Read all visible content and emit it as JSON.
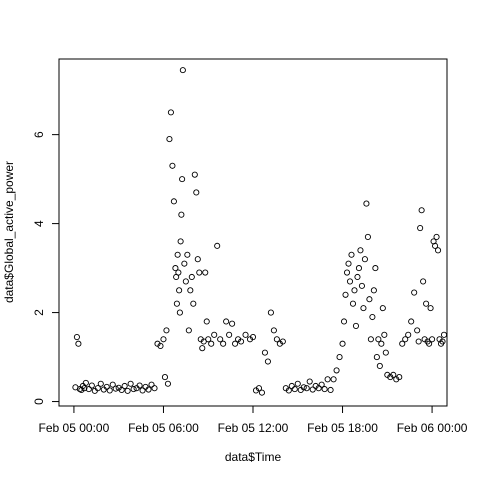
{
  "chart_data": {
    "type": "scatter",
    "title": "",
    "xlabel": "data$Time",
    "ylabel": "data$Global_active_power",
    "x_unit": "hours from Feb 05 00:00",
    "xlim": [
      -1,
      25
    ],
    "ylim": [
      -0.1,
      7.7
    ],
    "x_ticks": [
      {
        "value": 0,
        "label": "Feb 05 00:00"
      },
      {
        "value": 6,
        "label": "Feb 05 06:00"
      },
      {
        "value": 12,
        "label": "Feb 05 12:00"
      },
      {
        "value": 18,
        "label": "Feb 05 18:00"
      },
      {
        "value": 24,
        "label": "Feb 06 00:00"
      }
    ],
    "y_ticks": [
      {
        "value": 0,
        "label": "0"
      },
      {
        "value": 2,
        "label": "2"
      },
      {
        "value": 4,
        "label": "4"
      },
      {
        "value": 6,
        "label": "6"
      }
    ],
    "marker": "open-circle",
    "grid": false,
    "legend": "none",
    "series": [
      {
        "x": [
          0.1,
          0.2,
          0.3,
          0.4,
          0.5,
          0.6,
          0.7,
          0.8,
          1.0,
          1.2,
          1.4,
          1.6,
          1.8,
          2.0,
          2.2,
          2.4,
          2.6,
          2.8,
          3.0,
          3.2,
          3.4,
          3.6,
          3.8,
          4.0,
          4.2,
          4.4,
          4.6,
          4.8,
          5.0,
          5.2,
          5.4,
          5.6,
          5.8,
          6.0,
          6.1,
          6.2,
          6.3,
          6.4,
          6.5,
          6.6,
          6.7,
          6.8,
          6.85,
          6.9,
          6.95,
          7.0,
          7.05,
          7.1,
          7.15,
          7.2,
          7.25,
          7.3,
          7.4,
          7.5,
          7.6,
          7.7,
          7.8,
          7.9,
          8.0,
          8.1,
          8.2,
          8.3,
          8.4,
          8.5,
          8.6,
          8.7,
          8.8,
          8.9,
          9.0,
          9.2,
          9.4,
          9.6,
          9.8,
          10.0,
          10.2,
          10.4,
          10.6,
          10.8,
          11.0,
          11.2,
          11.5,
          11.8,
          12.0,
          12.2,
          12.4,
          12.6,
          12.8,
          13.0,
          13.2,
          13.4,
          13.6,
          13.8,
          14.0,
          14.2,
          14.4,
          14.6,
          14.8,
          15.0,
          15.2,
          15.4,
          15.6,
          15.8,
          16.0,
          16.2,
          16.4,
          16.6,
          16.8,
          17.0,
          17.2,
          17.4,
          17.6,
          17.8,
          18.0,
          18.1,
          18.2,
          18.3,
          18.4,
          18.5,
          18.6,
          18.7,
          18.8,
          18.9,
          19.0,
          19.1,
          19.2,
          19.3,
          19.4,
          19.5,
          19.6,
          19.7,
          19.8,
          19.9,
          20.0,
          20.1,
          20.2,
          20.3,
          20.4,
          20.5,
          20.6,
          20.7,
          20.8,
          20.9,
          21.0,
          21.2,
          21.4,
          21.6,
          21.8,
          22.0,
          22.2,
          22.4,
          22.6,
          22.8,
          23.0,
          23.1,
          23.2,
          23.3,
          23.4,
          23.5,
          23.6,
          23.7,
          23.8,
          23.9,
          24.0,
          24.1,
          24.2,
          24.3,
          24.4,
          24.5,
          24.6,
          24.7,
          24.8
        ],
        "y": [
          0.32,
          1.45,
          1.3,
          0.28,
          0.26,
          0.35,
          0.3,
          0.42,
          0.28,
          0.36,
          0.24,
          0.3,
          0.4,
          0.27,
          0.33,
          0.25,
          0.38,
          0.29,
          0.31,
          0.26,
          0.35,
          0.24,
          0.4,
          0.28,
          0.3,
          0.36,
          0.25,
          0.33,
          0.27,
          0.38,
          0.3,
          1.3,
          1.25,
          1.4,
          0.55,
          1.6,
          0.4,
          5.9,
          6.5,
          5.3,
          4.5,
          3.0,
          2.8,
          2.2,
          3.3,
          2.9,
          2.5,
          2.0,
          3.6,
          4.2,
          5.0,
          7.45,
          3.1,
          2.7,
          3.3,
          1.6,
          2.5,
          2.8,
          2.2,
          5.1,
          4.7,
          3.2,
          2.9,
          1.4,
          1.2,
          1.35,
          2.9,
          1.8,
          1.4,
          1.3,
          1.5,
          3.5,
          1.4,
          1.3,
          1.8,
          1.5,
          1.75,
          1.3,
          1.4,
          1.35,
          1.5,
          1.4,
          1.45,
          0.25,
          0.3,
          0.2,
          1.1,
          0.9,
          2.0,
          1.6,
          1.4,
          1.3,
          1.35,
          0.3,
          0.25,
          0.35,
          0.28,
          0.4,
          0.26,
          0.32,
          0.3,
          0.45,
          0.27,
          0.35,
          0.3,
          0.38,
          0.28,
          0.5,
          0.26,
          0.5,
          0.7,
          1.0,
          1.3,
          1.8,
          2.4,
          2.9,
          3.1,
          2.7,
          3.3,
          2.2,
          2.5,
          1.7,
          2.8,
          3.0,
          3.4,
          2.6,
          2.1,
          3.2,
          4.45,
          3.7,
          2.3,
          1.4,
          1.9,
          2.5,
          3.0,
          1.0,
          1.4,
          0.8,
          1.3,
          2.1,
          1.5,
          1.1,
          0.6,
          0.55,
          0.6,
          0.5,
          0.55,
          1.3,
          1.4,
          1.5,
          1.8,
          2.45,
          1.6,
          1.35,
          3.9,
          4.3,
          2.7,
          1.4,
          2.2,
          1.35,
          1.3,
          2.1,
          1.4,
          3.6,
          3.5,
          3.7,
          3.4,
          1.4,
          1.3,
          1.35,
          1.5
        ]
      }
    ]
  }
}
